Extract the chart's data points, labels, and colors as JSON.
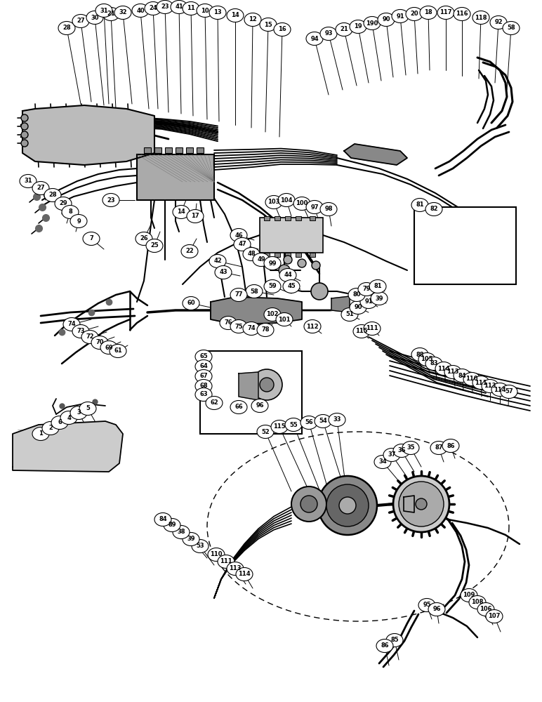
{
  "background_color": "#ffffff",
  "line_color": "#000000",
  "bubble_fill": "#ffffff",
  "bubble_edge": "#000000",
  "gray_fill": "#888888",
  "light_gray": "#cccccc",
  "dark_gray": "#444444"
}
